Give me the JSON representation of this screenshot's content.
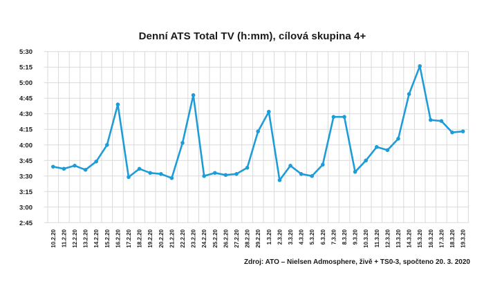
{
  "title": "Denní ATS Total TV (h:mm), cílová skupina 4+",
  "source": "Zdroj: ATO – Nielsen Admosphere, živě + TS0-3, spočteno 20. 3. 2020",
  "colors": {
    "line": "#1E9CD7",
    "marker": "#1E9CD7",
    "grid": "#D9D9D9",
    "text": "#1a1a1a",
    "background": "#ffffff"
  },
  "chart_data": {
    "type": "line",
    "title": "Denní ATS Total TV (h:mm), cílová skupina 4+",
    "xlabel": "",
    "ylabel": "",
    "legend": "none",
    "grid": "both",
    "marker": "circle",
    "y_tick_labels": [
      "5:30",
      "5:15",
      "5:00",
      "4:45",
      "4:30",
      "4:15",
      "4:00",
      "3:45",
      "3:30",
      "3:15",
      "3:00",
      "2:45"
    ],
    "ylim_minutes": [
      165,
      330
    ],
    "categories": [
      "10.2.20",
      "11.2.20",
      "12.2.20",
      "13.2.20",
      "14.2.20",
      "15.2.20",
      "16.2.20",
      "17.2.20",
      "18.2.20",
      "19.2.20",
      "20.2.20",
      "21.2.20",
      "22.2.20",
      "23.2.20",
      "24.2.20",
      "25.2.20",
      "26.2.20",
      "27.2.20",
      "28.2.20",
      "29.2.20",
      "1.3.20",
      "2.3.20",
      "3.3.20",
      "4.3.20",
      "5.3.20",
      "6.3.20",
      "7.3.20",
      "8.3.20",
      "9.3.20",
      "10.3.20",
      "11.3.20",
      "12.3.20",
      "13.3.20",
      "14.3.20",
      "15.3.20",
      "16.3.20",
      "17.3.20",
      "18.3.20",
      "19.3.20"
    ],
    "values_hmm": [
      "3:39",
      "3:37",
      "3:40",
      "3:36",
      "3:44",
      "4:00",
      "4:39",
      "3:29",
      "3:37",
      "3:33",
      "3:32",
      "3:28",
      "4:02",
      "4:48",
      "3:30",
      "3:33",
      "3:31",
      "3:32",
      "3:38",
      "4:13",
      "4:32",
      "3:26",
      "3:40",
      "3:32",
      "3:30",
      "3:41",
      "4:27",
      "4:27",
      "3:34",
      "3:45",
      "3:58",
      "3:55",
      "4:06",
      "4:49",
      "5:16",
      "4:24",
      "4:23",
      "4:12",
      "4:13"
    ],
    "values_minutes": [
      219,
      217,
      220,
      216,
      224,
      240,
      279,
      209,
      217,
      213,
      212,
      208,
      242,
      288,
      210,
      213,
      211,
      212,
      218,
      253,
      272,
      206,
      220,
      212,
      210,
      221,
      267,
      267,
      214,
      225,
      238,
      235,
      246,
      289,
      316,
      264,
      263,
      252,
      253
    ]
  }
}
